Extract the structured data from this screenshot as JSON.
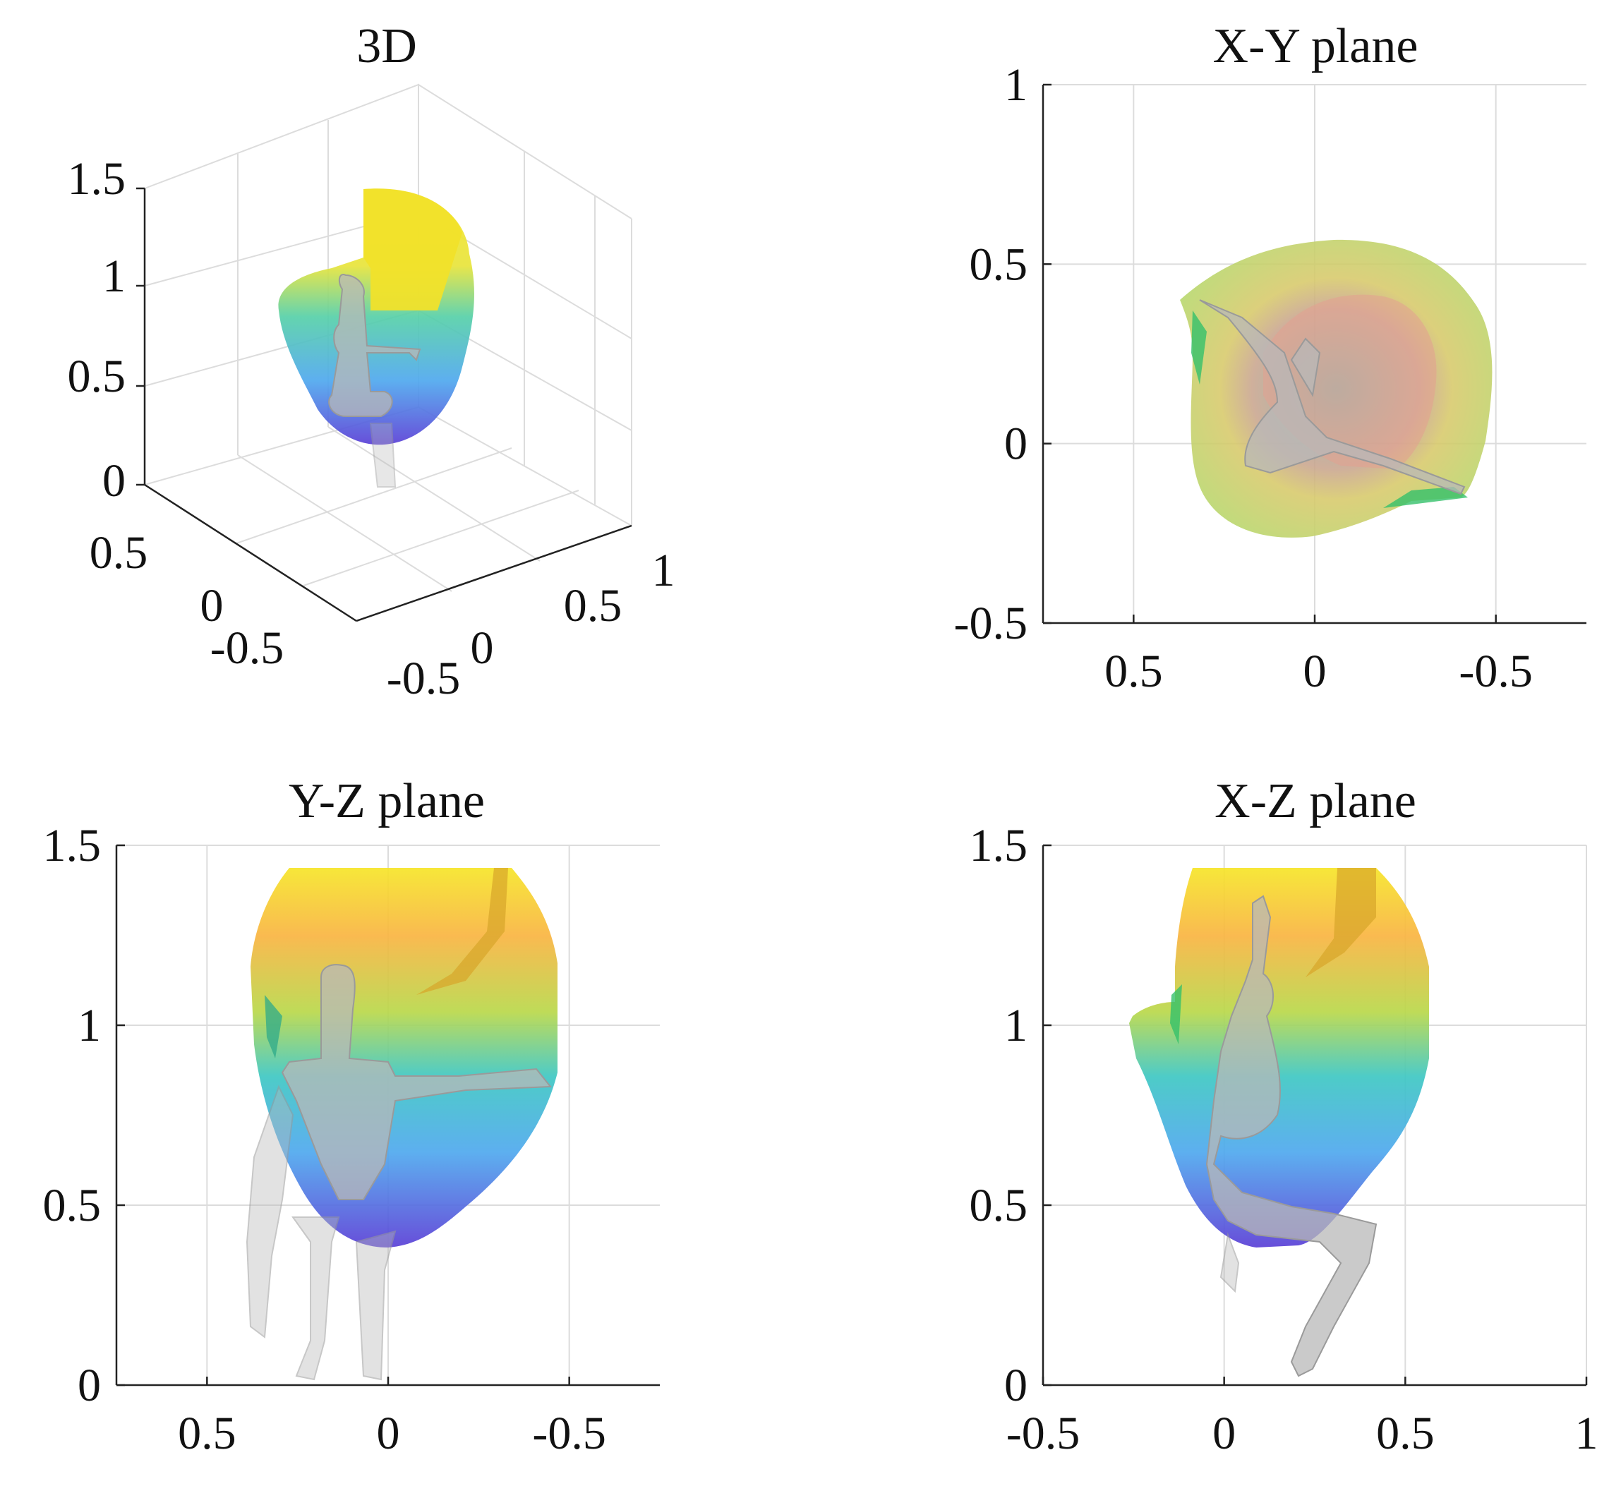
{
  "colors": {
    "top": "#f6e528",
    "upper": "#f9b441",
    "mid_upper": "#b9d84a",
    "mid": "#3ec7c3",
    "lower": "#4fa8ee",
    "bottom": "#5a3fd6",
    "tint_a": "#d9c84a",
    "tint_b": "#e59a85",
    "axis": "#222222",
    "grid": "#dcdcdc"
  },
  "chart_data": [
    {
      "id": "3d",
      "type": "surface3d",
      "title": "3D",
      "z_ticks": [
        "1.5",
        "1",
        "0.5",
        "0"
      ],
      "x_ticks": [
        "0.5",
        "0",
        "-0.5"
      ],
      "y_ticks": [
        "-0.5",
        "0",
        "0.5",
        "1"
      ],
      "zlim": [
        0,
        1.5
      ]
    },
    {
      "id": "xy",
      "type": "area",
      "title": "X-Y plane",
      "xlim": [
        0.75,
        -0.75
      ],
      "ylim": [
        -0.5,
        1
      ],
      "x_ticks": [
        "0.5",
        "0",
        "-0.5"
      ],
      "y_ticks": [
        "1",
        "0.5",
        "0",
        "-0.5"
      ],
      "x_tick_values": [
        0.5,
        0,
        -0.5
      ],
      "y_tick_values": [
        1,
        0.5,
        0,
        -0.5
      ],
      "grid": true
    },
    {
      "id": "yz",
      "type": "area",
      "title": "Y-Z plane",
      "xlim": [
        0.75,
        -0.75
      ],
      "ylim": [
        0,
        1.5
      ],
      "x_ticks": [
        "0.5",
        "0",
        "-0.5"
      ],
      "y_ticks": [
        "1.5",
        "1",
        "0.5",
        "0"
      ],
      "x_tick_values": [
        0.5,
        0,
        -0.5
      ],
      "y_tick_values": [
        1.5,
        1,
        0.5,
        0
      ],
      "grid": true
    },
    {
      "id": "xz",
      "type": "area",
      "title": "X-Z plane",
      "xlim": [
        -0.5,
        1
      ],
      "ylim": [
        0,
        1.5
      ],
      "x_ticks": [
        "-0.5",
        "0",
        "0.5",
        "1"
      ],
      "y_ticks": [
        "1.5",
        "1",
        "0.5",
        "0"
      ],
      "x_tick_values": [
        -0.5,
        0,
        0.5,
        1
      ],
      "y_tick_values": [
        1.5,
        1,
        0.5,
        0
      ],
      "grid": true
    }
  ]
}
